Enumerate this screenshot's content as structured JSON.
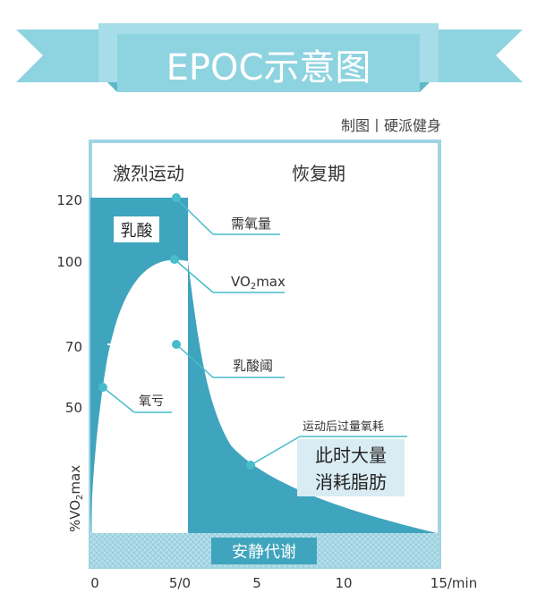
{
  "title": "EPOC示意图",
  "credit": "制图丨硬派健身",
  "phase_labels": {
    "exercise": "激烈运动",
    "recovery": "恢复期"
  },
  "y_axis": {
    "label_prefix": "%VO",
    "label_sub": "2",
    "label_suffix": "max",
    "ticks": [
      "120",
      "100",
      "70",
      "50"
    ]
  },
  "x_axis": {
    "ticks": [
      "0",
      "5/0",
      "5",
      "10",
      "15/min"
    ]
  },
  "regions": {
    "lactic": "乳酸",
    "baseline": "安静代谢",
    "epoc_note_line1": "此时大量",
    "epoc_note_line2": "消耗脂肪"
  },
  "callouts": {
    "oxygen_demand": "需氧量",
    "vo2max_prefix": "VO",
    "vo2max_sub": "2",
    "vo2max_suffix": "max",
    "lactate_threshold": "乳酸阈",
    "oxygen_deficit": "氧亏",
    "epoc": "运动后过量氧耗"
  },
  "colors": {
    "ribbon": "#8ed3e0",
    "ribbon_dark": "#5fb7c9",
    "teal": "#3fa4bd",
    "frame": "#9fd4e2",
    "baseline": "#b7dfe9",
    "dot": "#47bccb",
    "note_bg": "#d9ecf3"
  }
}
